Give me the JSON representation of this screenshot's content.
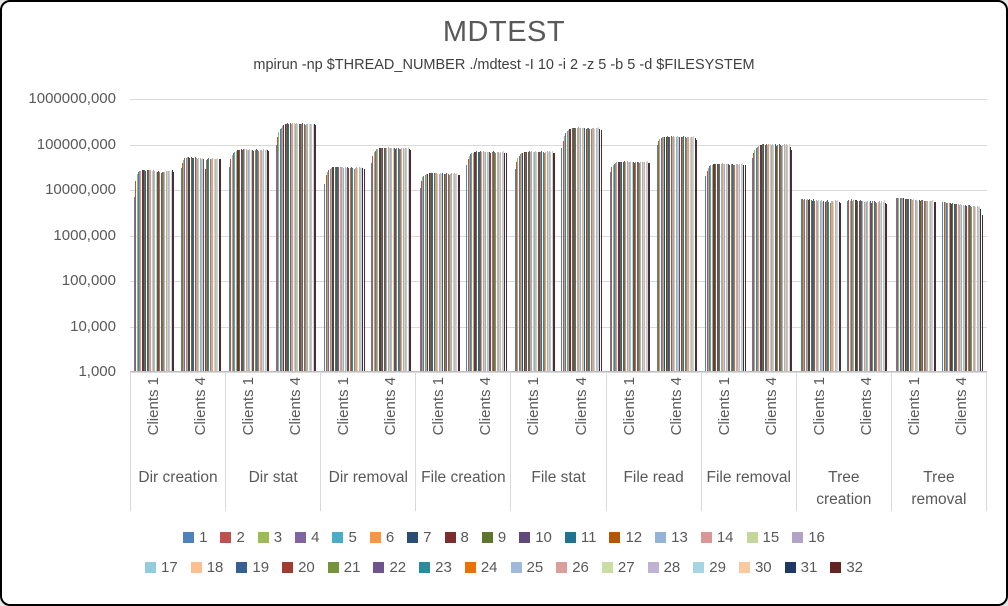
{
  "title": "MDTEST",
  "subtitle": "mpirun -np $THREAD_NUMBER ./mdtest -I 10 -i 2 -z 5 -b 5 -d $FILESYSTEM",
  "colors": {
    "title_text": "#595959",
    "axis_text": "#595959",
    "gridline": "#D9D9D9",
    "axis_line": "#BFBFBF",
    "window_border": "#000000",
    "background": "#FFFFFF"
  },
  "chart_data": {
    "type": "bar",
    "title": "MDTEST",
    "subtitle": "mpirun -np $THREAD_NUMBER ./mdtest -I 10 -i 2 -z 5 -b 5 -d $FILESYSTEM",
    "y_axis": {
      "scale": "log10",
      "min": 1000,
      "max": 1000000000,
      "gridlines": true,
      "tick_labels_bottom_to_top": [
        "1,000",
        "10,000",
        "100,000",
        "1000,000",
        "10000,000",
        "100000,000",
        "1000000,000"
      ],
      "tick_values_bottom_to_top": [
        1000,
        10000,
        100000,
        1000000,
        10000000,
        100000000,
        1000000000
      ]
    },
    "x_axis": {
      "categories": [
        "Dir creation",
        "Dir stat",
        "Dir removal",
        "File creation",
        "File stat",
        "File read",
        "File removal",
        "Tree\ncreation",
        "Tree\nremoval"
      ],
      "subcategories": [
        "Clients 1",
        "Clients 4"
      ]
    },
    "legend": {
      "position": "bottom",
      "rows": [
        [
          "1",
          "2",
          "3",
          "4",
          "5",
          "6",
          "7",
          "8",
          "9",
          "10",
          "11",
          "12",
          "13",
          "14",
          "15",
          "16"
        ],
        [
          "17",
          "18",
          "19",
          "20",
          "21",
          "22",
          "23",
          "24",
          "25",
          "26",
          "27",
          "28",
          "29",
          "30",
          "31",
          "32"
        ]
      ]
    },
    "series_names": [
      "1",
      "2",
      "3",
      "4",
      "5",
      "6",
      "7",
      "8",
      "9",
      "10",
      "11",
      "12",
      "13",
      "14",
      "15",
      "16",
      "17",
      "18",
      "19",
      "20",
      "21",
      "22",
      "23",
      "24",
      "25",
      "26",
      "27",
      "28",
      "29",
      "30",
      "31",
      "32"
    ],
    "series_colors": [
      "#4F81BD",
      "#C0504D",
      "#9BBB59",
      "#8064A2",
      "#4BACC6",
      "#F79646",
      "#2A4E73",
      "#7B2E2B",
      "#5E742F",
      "#5F497A",
      "#1F7391",
      "#B65708",
      "#95B3D7",
      "#D99694",
      "#C3D69B",
      "#B2A2C7",
      "#92CDDC",
      "#FAC090",
      "#376092",
      "#9E3B33",
      "#76923C",
      "#6E548D",
      "#2E8B9E",
      "#E8710A",
      "#9FB9DA",
      "#DA9E9B",
      "#CBDCA4",
      "#BFB2D3",
      "#A5D5E2",
      "#FBC99F",
      "#1F3864",
      "#632523"
    ],
    "value_unit": "operations (millions, multiply by unit_multiplier)",
    "unit_multiplier": 1000000,
    "values_millions": [
      [
        [
          6.8,
          15,
          21,
          23.5,
          24.5,
          25.5,
          26,
          26.5,
          26,
          25.5,
          26,
          25.8,
          26.2,
          25.6,
          25.2,
          25.9,
          24.8,
          24.2,
          23.8,
          24.5,
          23.2,
          22.8,
          23.5,
          24.1,
          23.9,
          24.6,
          25.1,
          24.4,
          25.3,
          24.9,
          25.6,
          24.2
        ],
        [
          29,
          38,
          44,
          47,
          49,
          50,
          49.5,
          48.5,
          50.5,
          49,
          48,
          49.5,
          47.5,
          46.5,
          48,
          47,
          46,
          47.5,
          45.5,
          27,
          44,
          46.5,
          47,
          45.8,
          46.9,
          47.6,
          46.2,
          45.4,
          46.8,
          47.3,
          45.9,
          44.7
        ]
      ],
      [
        [
          30,
          45,
          56,
          62,
          66,
          69,
          71,
          72,
          73,
          74,
          73,
          75,
          74,
          76,
          73,
          72,
          74,
          71,
          73,
          70,
          72,
          74,
          71,
          69,
          72,
          73,
          70,
          74,
          72,
          75,
          71,
          68
        ],
        [
          95,
          140,
          175,
          205,
          225,
          245,
          258,
          265,
          272,
          276,
          270,
          278,
          274,
          280,
          276,
          272,
          278,
          270,
          274,
          266,
          272,
          276,
          268,
          262,
          270,
          274,
          266,
          272,
          268,
          274,
          264,
          256
        ]
      ],
      [
        [
          13,
          20,
          24,
          26.5,
          28,
          29,
          30,
          30.5,
          31,
          30,
          30.5,
          31.2,
          30.2,
          31,
          29.8,
          29.2,
          30.4,
          29.4,
          30,
          28.6,
          29.6,
          30.6,
          29,
          28.2,
          29.4,
          30,
          28.8,
          30.2,
          29.6,
          30.8,
          28.4,
          27.6
        ],
        [
          38,
          54,
          64,
          70,
          74,
          77,
          79,
          80,
          81,
          80,
          79,
          81,
          79.5,
          82,
          80,
          78,
          81,
          78.5,
          80,
          76,
          78.8,
          81.2,
          77.6,
          75.4,
          78.2,
          80.4,
          76.8,
          80.6,
          78.6,
          82.2,
          75.8,
          73.4
        ]
      ],
      [
        [
          10.5,
          15,
          18,
          19.5,
          20.5,
          21.2,
          21.8,
          22.2,
          22.6,
          22,
          22.3,
          22.8,
          22.1,
          22.7,
          21.9,
          21.4,
          22.4,
          21.6,
          22,
          21,
          21.7,
          22.5,
          21.2,
          20.6,
          21.5,
          22,
          21,
          22.2,
          21.6,
          22.6,
          20.8,
          20.2
        ],
        [
          33,
          45,
          53,
          58,
          61,
          63.5,
          65,
          66,
          67,
          66,
          65.2,
          67.2,
          65.6,
          67.6,
          66.2,
          64.4,
          66.8,
          64.8,
          66,
          62.8,
          65,
          67,
          64,
          62.2,
          64.6,
          66.4,
          63.4,
          66.6,
          64.9,
          67.8,
          62.6,
          60.6
        ]
      ],
      [
        [
          28,
          40,
          48,
          54,
          58,
          61,
          63,
          64.5,
          65.5,
          66.5,
          65.5,
          67,
          66,
          68,
          66.5,
          65,
          67.5,
          65.2,
          66.8,
          63.8,
          66,
          68.2,
          64.6,
          62.6,
          65.4,
          67.2,
          64,
          67.4,
          65.8,
          68.6,
          63.4,
          61.4
        ],
        [
          80,
          115,
          145,
          168,
          185,
          198,
          208,
          214,
          219,
          222,
          217,
          224,
          220,
          226,
          222,
          216,
          223,
          215,
          220,
          210,
          217,
          224,
          212,
          206,
          215,
          221,
          209,
          222,
          216,
          226,
          207,
          196
        ]
      ],
      [
        [
          24,
          30,
          34,
          36,
          37.5,
          38.5,
          39.2,
          39.8,
          40.2,
          39.4,
          39.8,
          40.4,
          39.6,
          40.6,
          39.8,
          38.8,
          40,
          38.9,
          39.7,
          38.2,
          39.4,
          40.3,
          38.6,
          37.8,
          39,
          39.9,
          38.4,
          40.1,
          39.2,
          40.7,
          37.9,
          36.9
        ],
        [
          95,
          115,
          126,
          132,
          136,
          139,
          141,
          142.5,
          143.5,
          141,
          142,
          144,
          141.5,
          144.5,
          142.5,
          139.5,
          143,
          140,
          142,
          137,
          141,
          143.8,
          138.6,
          135.4,
          139.8,
          142.6,
          137.4,
          142.8,
          140.2,
          144.8,
          134,
          118
        ]
      ],
      [
        [
          19,
          25,
          29,
          31.5,
          33,
          34.2,
          35,
          35.6,
          36.1,
          35.3,
          35.7,
          36.3,
          35.5,
          36.5,
          35.7,
          34.8,
          36,
          34.9,
          35.6,
          34.2,
          35.3,
          36.2,
          34.6,
          33.8,
          35,
          35.8,
          34.4,
          36,
          35.1,
          36.6,
          33.9,
          33
        ],
        [
          48,
          62,
          72,
          79,
          84,
          88,
          91,
          93.5,
          95.5,
          97,
          94,
          98,
          95,
          99,
          96.5,
          93,
          97.5,
          93.5,
          96,
          90,
          94.5,
          98.5,
          92,
          88.5,
          93,
          96.5,
          90.5,
          95.5,
          92.5,
          97,
          86,
          72
        ]
      ],
      [
        [
          5.9,
          6.1,
          5.8,
          6,
          5.7,
          6.05,
          5.85,
          5.95,
          5.75,
          5.5,
          5.9,
          5.6,
          5.8,
          5.45,
          5.7,
          5.35,
          5.65,
          5.25,
          5.55,
          5.15,
          5.5,
          5.75,
          5.3,
          5.05,
          5.45,
          5.6,
          5.2,
          5.65,
          5.4,
          5.8,
          5.1,
          4.95
        ],
        [
          5.5,
          5.8,
          5.6,
          5.9,
          5.55,
          5.85,
          5.65,
          5.75,
          5.6,
          5.35,
          5.7,
          5.45,
          5.6,
          5.3,
          5.55,
          5.2,
          5.5,
          5.1,
          5.4,
          5,
          5.35,
          5.6,
          5.15,
          4.9,
          5.3,
          5.45,
          5.05,
          5.5,
          5.25,
          5.65,
          4.95,
          4.8
        ]
      ],
      [
        [
          6.5,
          6.4,
          6.45,
          6.3,
          6.35,
          6.2,
          6.25,
          6.1,
          6.15,
          5.95,
          6.05,
          5.9,
          6,
          5.8,
          5.9,
          5.7,
          5.8,
          5.6,
          5.7,
          5.5,
          5.65,
          5.75,
          5.5,
          5.35,
          5.55,
          5.6,
          5.4,
          5.6,
          5.45,
          5.65,
          5.25,
          5.1
        ],
        [
          5.2,
          5.1,
          5.15,
          5,
          5.05,
          4.9,
          4.95,
          4.8,
          4.85,
          4.65,
          4.75,
          4.6,
          4.7,
          4.5,
          4.6,
          4.4,
          4.5,
          4.3,
          4.4,
          4.2,
          4.35,
          4.45,
          4.2,
          4.05,
          4.25,
          4.3,
          4.05,
          4.25,
          4.1,
          4.3,
          3.6,
          2.7
        ]
      ]
    ]
  }
}
